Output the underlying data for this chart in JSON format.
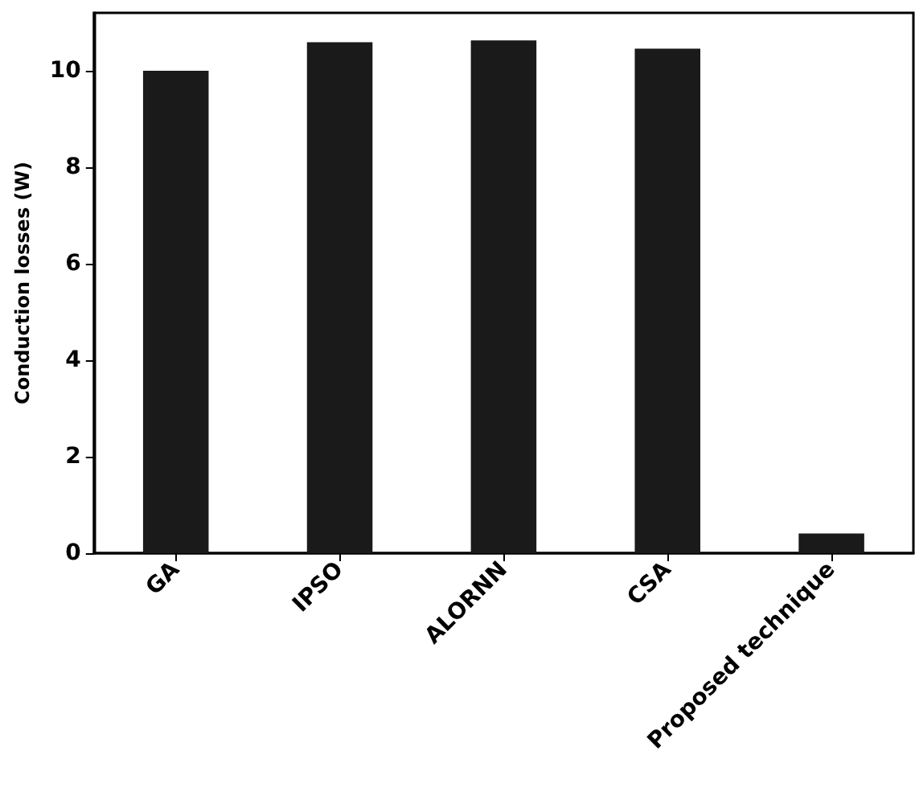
{
  "chart_data": {
    "type": "bar",
    "ylabel": "Conduction losses (W)",
    "categories": [
      "GA",
      "IPSO",
      "ALORNN",
      "CSA",
      "Proposed technique"
    ],
    "values": [
      10.0,
      10.59,
      10.63,
      10.46,
      0.41
    ],
    "color": "#1a1a1a",
    "ylim": [
      0,
      11.2
    ],
    "yticks": [
      0,
      2,
      4,
      6,
      8,
      10
    ],
    "grid": false
  }
}
